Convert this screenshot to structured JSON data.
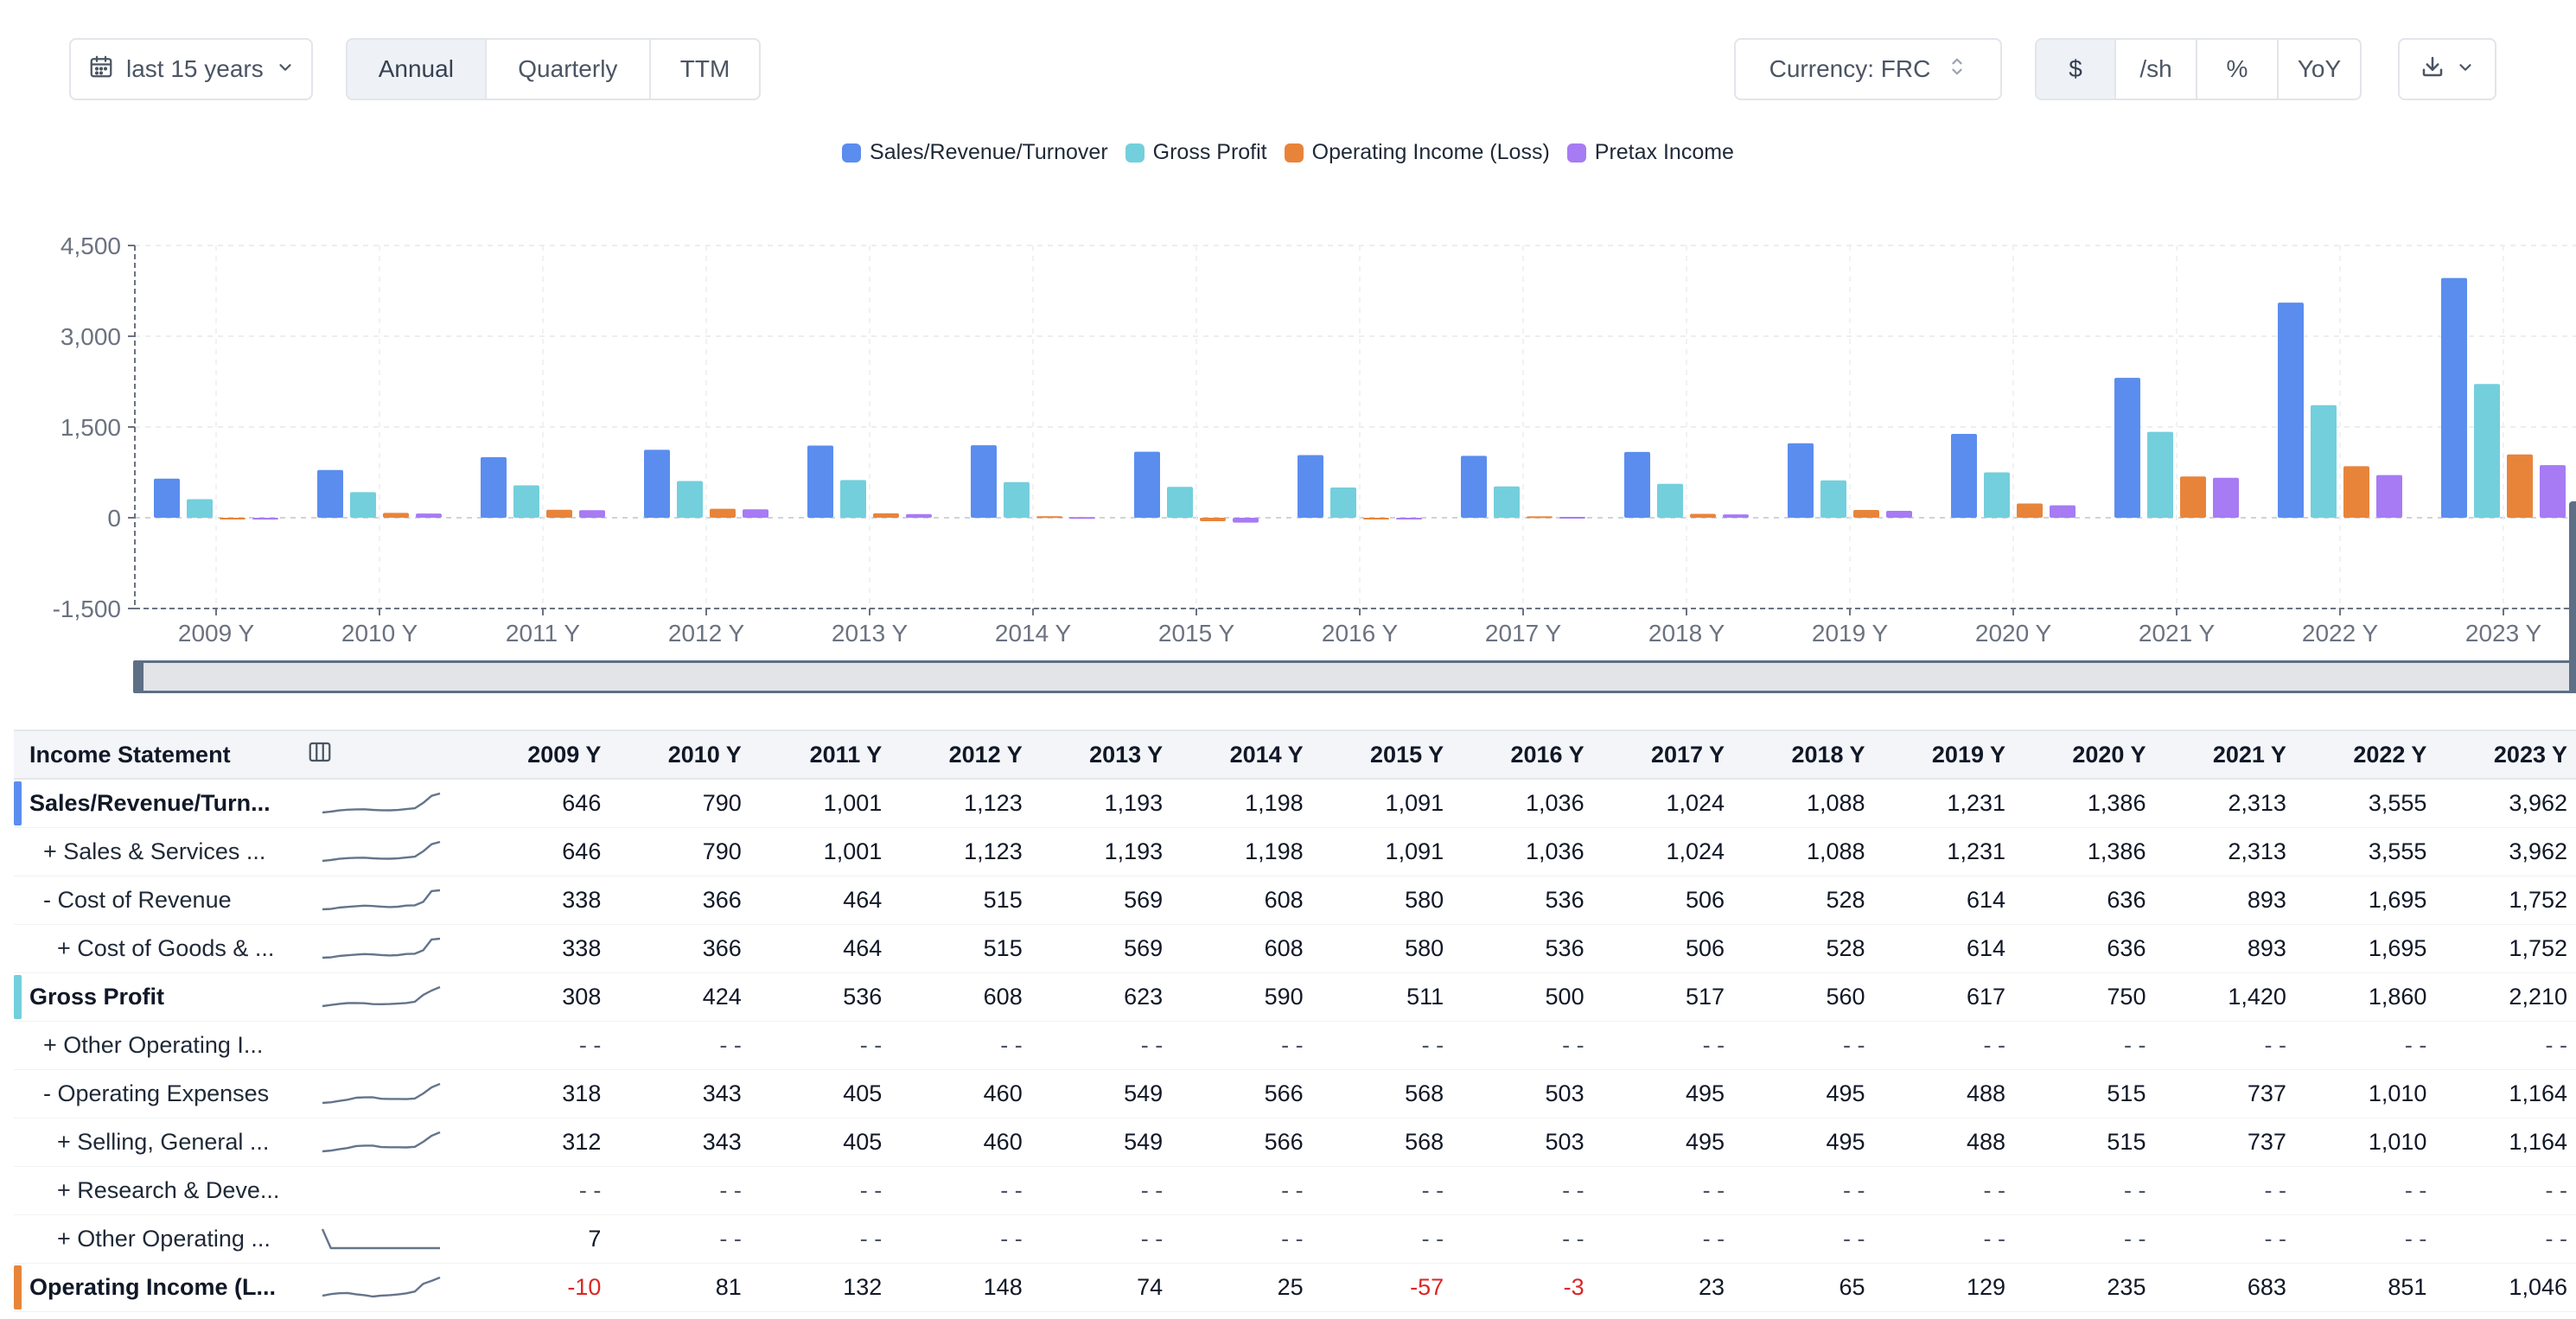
{
  "toolbar": {
    "range_label": "last 15 years",
    "periods": [
      {
        "label": "Annual",
        "active": true
      },
      {
        "label": "Quarterly",
        "active": false
      },
      {
        "label": "TTM",
        "active": false
      }
    ],
    "currency_label": "Currency: FRC",
    "units": [
      {
        "label": "$",
        "active": true
      },
      {
        "label": "/sh",
        "active": false
      },
      {
        "label": "%",
        "active": false
      },
      {
        "label": "YoY",
        "active": false
      }
    ]
  },
  "icons": {
    "calendar": "calendar-icon",
    "chevron": "chevron-down-icon",
    "sort": "chevron-up-down-icon",
    "download": "download-icon",
    "columns": "columns-icon"
  },
  "chart_data": {
    "type": "bar",
    "categories": [
      "2009 Y",
      "2010 Y",
      "2011 Y",
      "2012 Y",
      "2013 Y",
      "2014 Y",
      "2015 Y",
      "2016 Y",
      "2017 Y",
      "2018 Y",
      "2019 Y",
      "2020 Y",
      "2021 Y",
      "2022 Y",
      "2023 Y"
    ],
    "series": [
      {
        "name": "Sales/Revenue/Turnover",
        "color": "#5b8def",
        "values": [
          646,
          790,
          1001,
          1123,
          1193,
          1198,
          1091,
          1036,
          1024,
          1088,
          1231,
          1386,
          2313,
          3555,
          3962
        ]
      },
      {
        "name": "Gross Profit",
        "color": "#73cfdc",
        "values": [
          308,
          424,
          536,
          608,
          623,
          590,
          511,
          500,
          517,
          560,
          617,
          750,
          1420,
          1860,
          2210
        ]
      },
      {
        "name": "Operating Income (Loss)",
        "color": "#e8843a",
        "values": [
          -10,
          81,
          132,
          148,
          74,
          25,
          -57,
          -3,
          23,
          65,
          129,
          235,
          683,
          851,
          1046
        ]
      },
      {
        "name": "Pretax Income",
        "color": "#a77bf3",
        "values": [
          -30,
          70,
          125,
          140,
          60,
          10,
          -80,
          -10,
          15,
          55,
          115,
          205,
          660,
          705,
          870
        ]
      }
    ],
    "yticks": [
      "4,500",
      "3,000",
      "1,500",
      "0",
      "-1,500"
    ],
    "ylim": [
      -1500,
      4500
    ],
    "grid": true,
    "legend": "top-center"
  },
  "table": {
    "header": "Income Statement",
    "columns": [
      "2009 Y",
      "2010 Y",
      "2011 Y",
      "2012 Y",
      "2013 Y",
      "2014 Y",
      "2015 Y",
      "2016 Y",
      "2017 Y",
      "2018 Y",
      "2019 Y",
      "2020 Y",
      "2021 Y",
      "2022 Y",
      "2023 Y"
    ],
    "rows": [
      {
        "label": "Sales/Revenue/Turn...",
        "bold": true,
        "accent": "#5b8def",
        "indent": 0,
        "spark": true,
        "values": [
          "646",
          "790",
          "1,001",
          "1,123",
          "1,193",
          "1,198",
          "1,091",
          "1,036",
          "1,024",
          "1,088",
          "1,231",
          "1,386",
          "2,313",
          "3,555",
          "3,962"
        ]
      },
      {
        "label": "+ Sales & Services ...",
        "bold": false,
        "accent": "",
        "indent": 1,
        "spark": true,
        "values": [
          "646",
          "790",
          "1,001",
          "1,123",
          "1,193",
          "1,198",
          "1,091",
          "1,036",
          "1,024",
          "1,088",
          "1,231",
          "1,386",
          "2,313",
          "3,555",
          "3,962"
        ]
      },
      {
        "label": "- Cost of Revenue",
        "bold": false,
        "accent": "",
        "indent": 1,
        "spark": true,
        "values": [
          "338",
          "366",
          "464",
          "515",
          "569",
          "608",
          "580",
          "536",
          "506",
          "528",
          "614",
          "636",
          "893",
          "1,695",
          "1,752"
        ]
      },
      {
        "label": "+ Cost of Goods & ...",
        "bold": false,
        "accent": "",
        "indent": 2,
        "spark": true,
        "values": [
          "338",
          "366",
          "464",
          "515",
          "569",
          "608",
          "580",
          "536",
          "506",
          "528",
          "614",
          "636",
          "893",
          "1,695",
          "1,752"
        ]
      },
      {
        "label": "Gross Profit",
        "bold": true,
        "accent": "#73cfdc",
        "indent": 0,
        "spark": true,
        "values": [
          "308",
          "424",
          "536",
          "608",
          "623",
          "590",
          "511",
          "500",
          "517",
          "560",
          "617",
          "750",
          "1,420",
          "1,860",
          "2,210"
        ]
      },
      {
        "label": "+ Other Operating I...",
        "bold": false,
        "accent": "",
        "indent": 1,
        "spark": false,
        "values": [
          "- -",
          "- -",
          "- -",
          "- -",
          "- -",
          "- -",
          "- -",
          "- -",
          "- -",
          "- -",
          "- -",
          "- -",
          "- -",
          "- -",
          "- -"
        ]
      },
      {
        "label": "- Operating Expenses",
        "bold": false,
        "accent": "",
        "indent": 1,
        "spark": true,
        "values": [
          "318",
          "343",
          "405",
          "460",
          "549",
          "566",
          "568",
          "503",
          "495",
          "495",
          "488",
          "515",
          "737",
          "1,010",
          "1,164"
        ]
      },
      {
        "label": "+ Selling, General ...",
        "bold": false,
        "accent": "",
        "indent": 2,
        "spark": true,
        "values": [
          "312",
          "343",
          "405",
          "460",
          "549",
          "566",
          "568",
          "503",
          "495",
          "495",
          "488",
          "515",
          "737",
          "1,010",
          "1,164"
        ]
      },
      {
        "label": "+ Research & Deve...",
        "bold": false,
        "accent": "",
        "indent": 2,
        "spark": false,
        "values": [
          "- -",
          "- -",
          "- -",
          "- -",
          "- -",
          "- -",
          "- -",
          "- -",
          "- -",
          "- -",
          "- -",
          "- -",
          "- -",
          "- -",
          "- -"
        ]
      },
      {
        "label": "+ Other Operating ...",
        "bold": false,
        "accent": "",
        "indent": 2,
        "spark": true,
        "values": [
          "7",
          "- -",
          "- -",
          "- -",
          "- -",
          "- -",
          "- -",
          "- -",
          "- -",
          "- -",
          "- -",
          "- -",
          "- -",
          "- -",
          "- -"
        ]
      },
      {
        "label": "Operating Income (L...",
        "bold": true,
        "accent": "#e8843a",
        "indent": 0,
        "spark": true,
        "values": [
          "-10",
          "81",
          "132",
          "148",
          "74",
          "25",
          "-57",
          "-3",
          "23",
          "65",
          "129",
          "235",
          "683",
          "851",
          "1,046"
        ]
      }
    ]
  }
}
